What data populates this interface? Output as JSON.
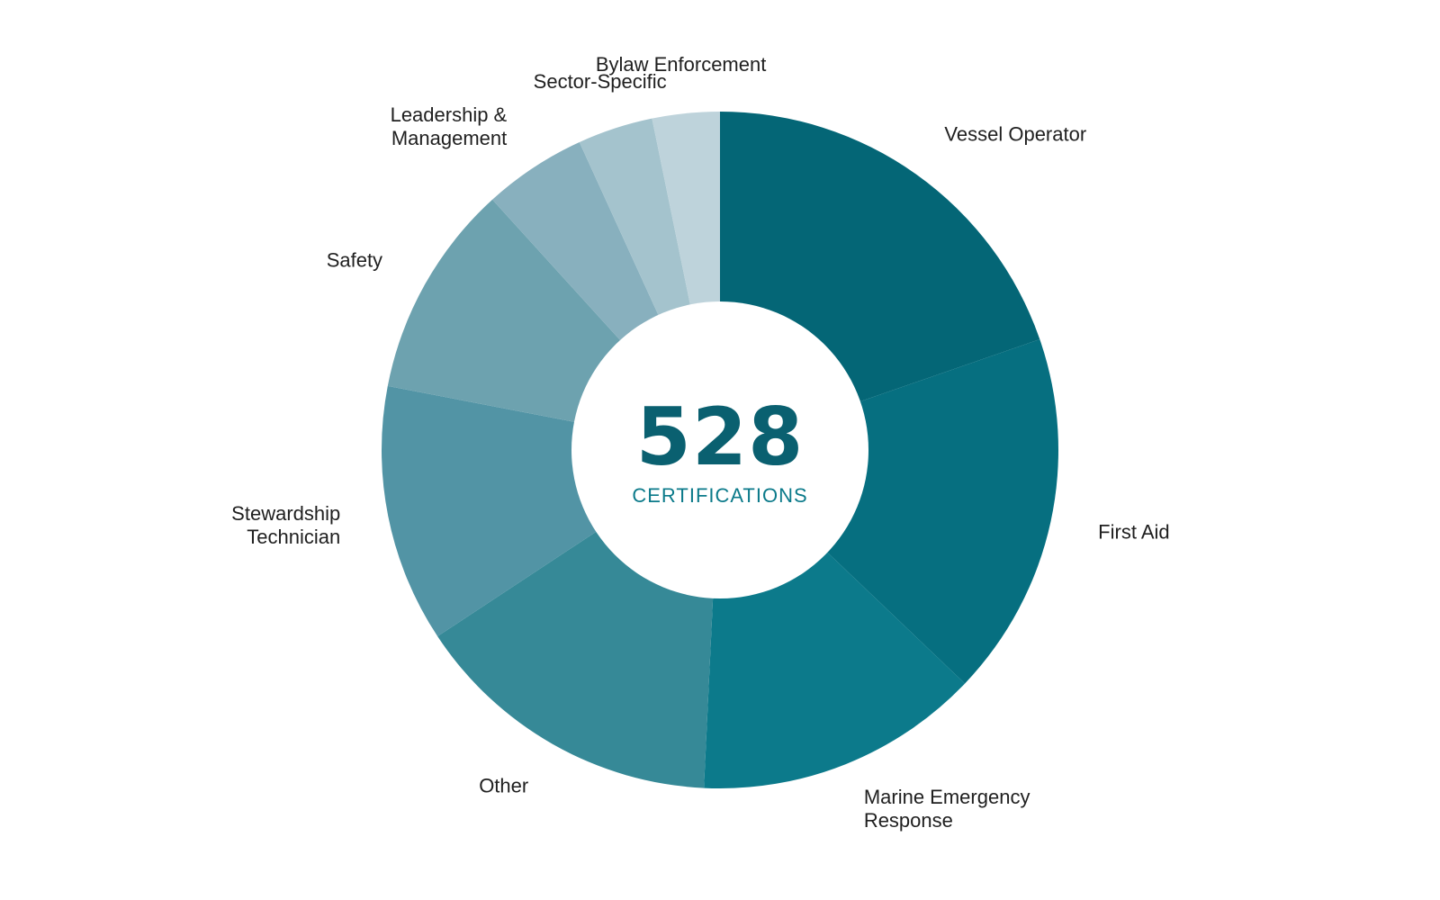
{
  "chart_data": {
    "type": "pie",
    "donut": true,
    "start_angle_deg": 0,
    "direction": "clockwise",
    "categories": [
      "Vessel Operator",
      "First Aid",
      "Marine Emergency Response",
      "Other",
      "Stewardship Technician",
      "Safety",
      "Leadership & Management",
      "Sector-Specific",
      "Bylaw Enforcement"
    ],
    "label_lines": [
      [
        "Vessel Operator"
      ],
      [
        "First Aid"
      ],
      [
        "Marine Emergency",
        "Response"
      ],
      [
        "Other"
      ],
      [
        "Stewardship",
        "Technician"
      ],
      [
        "Safety"
      ],
      [
        "Leadership &",
        "Management"
      ],
      [
        "Sector-Specific"
      ],
      [
        "Bylaw Enforcement"
      ]
    ],
    "values": [
      104,
      92,
      72,
      79,
      65,
      54,
      26,
      19,
      17
    ],
    "colors": [
      "#046676",
      "#066f80",
      "#0c7a8b",
      "#368997",
      "#5294a5",
      "#6da2af",
      "#88b0be",
      "#a4c3cd",
      "#bed3db"
    ],
    "total": 528,
    "center_value": "528",
    "center_label": "CERTIFICATIONS",
    "center_value_color": "#0a6070",
    "center_label_color": "#0b7a8a",
    "legend": "none"
  }
}
